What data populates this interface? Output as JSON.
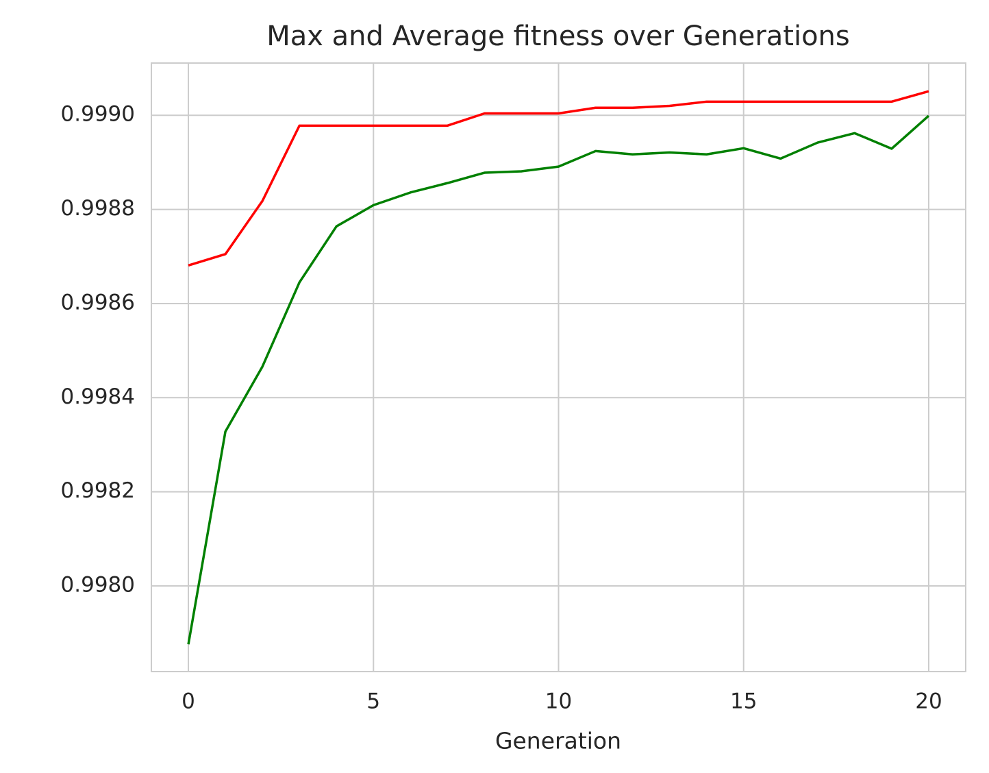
{
  "chart_data": {
    "type": "line",
    "title": "Max and Average fitness over Generations",
    "x_label": "Generation",
    "x": [
      0,
      1,
      2,
      3,
      4,
      5,
      6,
      7,
      8,
      9,
      10,
      11,
      12,
      13,
      14,
      15,
      16,
      17,
      18,
      19,
      20
    ],
    "series": [
      {
        "color": "#ff0000",
        "values": [
          0.998681,
          0.998705,
          0.998818,
          0.998978,
          0.998978,
          0.998978,
          0.998978,
          0.998978,
          0.999004,
          0.999004,
          0.999004,
          0.999016,
          0.999016,
          0.99902,
          0.999029,
          0.999029,
          0.999029,
          0.999029,
          0.999029,
          0.999029,
          0.999051
        ]
      },
      {
        "color": "#008000",
        "values": [
          0.997876,
          0.998328,
          0.998466,
          0.998645,
          0.998764,
          0.998809,
          0.998836,
          0.998856,
          0.998878,
          0.998881,
          0.998891,
          0.998924,
          0.998917,
          0.998921,
          0.998917,
          0.99893,
          0.998908,
          0.998942,
          0.998962,
          0.998929,
          0.998999
        ]
      }
    ],
    "xlim": [
      -1,
      21
    ],
    "xticks": [
      0,
      5,
      10,
      15,
      20
    ],
    "ylim": [
      0.997818,
      0.999111
    ],
    "yticks": [
      {
        "value": 0.998,
        "label": "0.9980"
      },
      {
        "value": 0.9982,
        "label": "0.9982"
      },
      {
        "value": 0.9984,
        "label": "0.9984"
      },
      {
        "value": 0.9986,
        "label": "0.9986"
      },
      {
        "value": 0.9988,
        "label": "0.9988"
      },
      {
        "value": 0.999,
        "label": "0.9990"
      }
    ],
    "grid": true
  }
}
